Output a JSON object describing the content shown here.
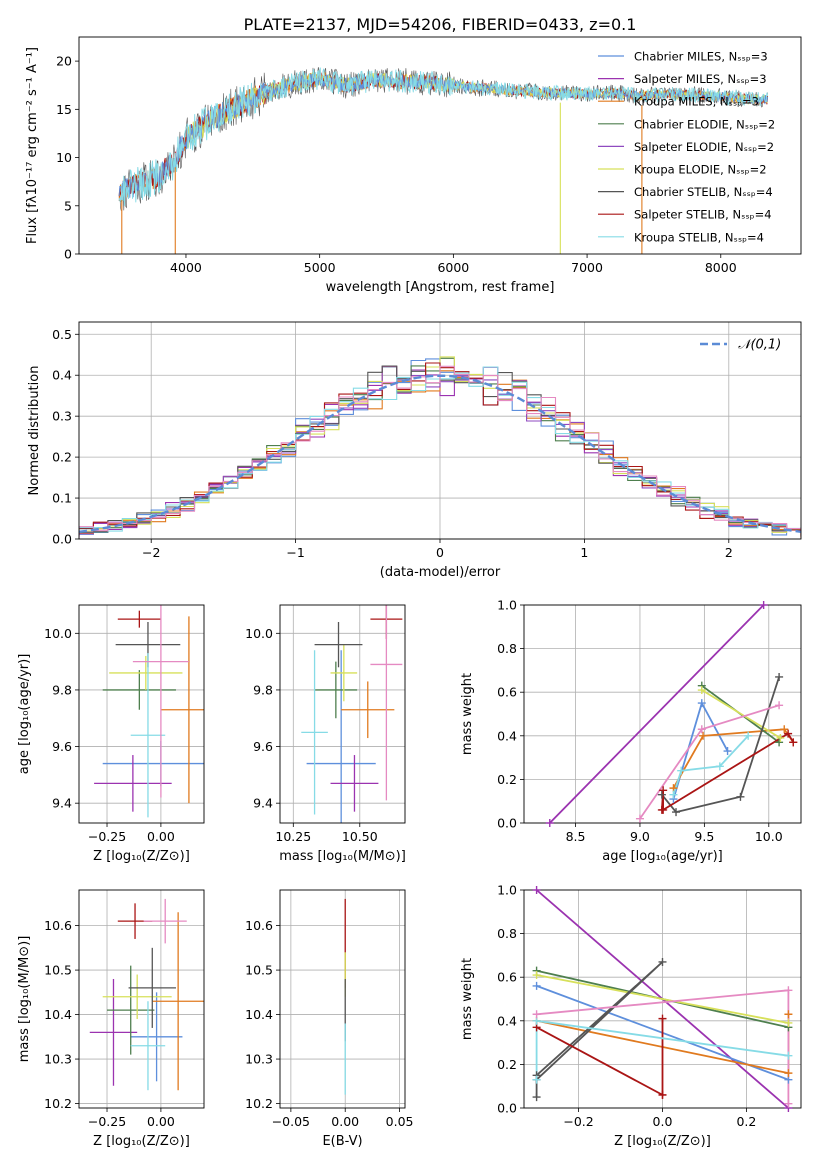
{
  "page": {
    "title": "PLATE=2137, MJD=54206, FIBERID=0433, z=0.1"
  },
  "colors": {
    "chabrier_miles": "#5e8fdc",
    "salpeter_miles": "#9b33b0",
    "kroupa_miles": "#e07a1f",
    "chabrier_elodie": "#4e7f4e",
    "salpeter_elodie": "#8f4ac0",
    "kroupa_elodie": "#d7e05a",
    "chabrier_stelib": "#555555",
    "salpeter_stelib": "#aa1515",
    "kroupa_stelib": "#86dbe6",
    "extra_pink": "#e58ac2",
    "gauss": "#5b8bd6"
  },
  "chart_data": [
    {
      "id": "spectrum",
      "type": "line",
      "xlabel": "wavelength [Angstrom, rest frame]",
      "ylabel": "Flux [fλ10⁻¹⁷ erg cm⁻² s⁻¹ A⁻¹]",
      "xlim": [
        3200,
        8600
      ],
      "ylim": [
        0,
        22.5
      ],
      "xticks": [
        4000,
        5000,
        6000,
        7000,
        8000
      ],
      "yticks": [
        0,
        5,
        10,
        15,
        20
      ],
      "legend_position": "top-right",
      "legend": [
        "Chabrier MILES, Nₛₛₚ=3",
        "Salpeter MILES, Nₛₛₚ=3",
        "Kroupa MILES, Nₛₛₚ=3",
        "Chabrier ELODIE, Nₛₛₚ=2",
        "Salpeter ELODIE, Nₛₛₚ=2",
        "Kroupa ELODIE, Nₛₛₚ=2",
        "Chabrier STELIB, Nₛₛₚ=4",
        "Salpeter STELIB, Nₛₛₚ=4",
        "Kroupa STELIB, Nₛₛₚ=4"
      ],
      "continuum": {
        "x": [
          3500,
          3600,
          3700,
          3800,
          3900,
          4000,
          4200,
          4400,
          4600,
          4800,
          5000,
          5200,
          5400,
          5600,
          5800,
          6000,
          6200,
          6400,
          6600,
          6800,
          7000,
          7200,
          7400,
          7600,
          7800,
          8000,
          8200,
          8350
        ],
        "y": [
          6.5,
          7.0,
          7.5,
          8.2,
          9.5,
          12.0,
          14.0,
          15.5,
          16.8,
          17.6,
          18.2,
          17.5,
          18.0,
          17.9,
          17.8,
          17.5,
          17.2,
          17.0,
          16.8,
          16.7,
          16.6,
          16.7,
          16.4,
          16.6,
          16.5,
          16.3,
          16.1,
          16.0
        ]
      },
      "dropouts": [
        {
          "x": 3520,
          "y": 0
        },
        {
          "x": 3920,
          "y": 0
        },
        {
          "x": 6800,
          "y": 0
        },
        {
          "x": 7410,
          "y": 0
        }
      ]
    },
    {
      "id": "residuals",
      "type": "histogram",
      "xlabel": "(data-model)/error",
      "ylabel": "Normed distribution",
      "xlim": [
        -2.5,
        2.5
      ],
      "ylim": [
        0,
        0.53
      ],
      "xticks": [
        -2,
        -1,
        0,
        1,
        2
      ],
      "yticks": [
        0.0,
        0.1,
        0.2,
        0.3,
        0.4,
        0.5
      ],
      "grid": true,
      "legend_position": "top-right",
      "gauss_label": "𝒩(0,1)",
      "bin_width": 0.1
    },
    {
      "id": "age-vs-z",
      "type": "errorbar",
      "xlabel": "Z [log₁₀(Z/Z⊙)]",
      "ylabel": "age  [log₁₀(age/yr)]",
      "xlim": [
        -0.38,
        0.2
      ],
      "ylim": [
        9.33,
        10.1
      ],
      "xticks": [
        -0.25,
        0.0
      ],
      "xticklabels": [
        "−0.25",
        "0.00"
      ],
      "yticks": [
        9.4,
        9.6,
        9.8,
        10.0
      ],
      "grid": true,
      "points": [
        {
          "c": "chabrier_miles",
          "x": 0.0,
          "xerr": 0.27,
          "y": 9.54,
          "yerr": 0.08
        },
        {
          "c": "salpeter_miles",
          "x": -0.13,
          "xerr": 0.18,
          "y": 9.47,
          "yerr": 0.1
        },
        {
          "c": "kroupa_miles",
          "x": 0.13,
          "xerr": 0.13,
          "y": 9.73,
          "yerr": 0.33
        },
        {
          "c": "chabrier_elodie",
          "x": -0.1,
          "xerr": 0.17,
          "y": 9.8,
          "yerr": 0.07
        },
        {
          "c": "kroupa_elodie",
          "x": -0.07,
          "xerr": 0.17,
          "y": 9.86,
          "yerr": 0.06
        },
        {
          "c": "chabrier_stelib",
          "x": -0.06,
          "xerr": 0.15,
          "y": 9.96,
          "yerr": 0.08
        },
        {
          "c": "salpeter_stelib",
          "x": -0.1,
          "xerr": 0.1,
          "y": 10.05,
          "yerr": 0.03
        },
        {
          "c": "kroupa_stelib",
          "x": -0.06,
          "xerr": 0.08,
          "y": 9.64,
          "yerr": 0.29
        },
        {
          "c": "extra_pink",
          "x": 0.0,
          "xerr": 0.13,
          "y": 9.9,
          "yerr": 0.48
        }
      ]
    },
    {
      "id": "age-vs-mass",
      "type": "errorbar",
      "xlabel": "mass [log₁₀(M/M⊙)]",
      "xlim": [
        10.2,
        10.67
      ],
      "ylim": [
        9.33,
        10.1
      ],
      "xticks": [
        10.25,
        10.5
      ],
      "yticks": [
        9.4,
        9.6,
        9.8,
        10.0
      ],
      "grid": true,
      "points": [
        {
          "c": "chabrier_miles",
          "x": 10.43,
          "xerr": 0.13,
          "y": 9.54,
          "yerr": 0.4
        },
        {
          "c": "salpeter_miles",
          "x": 10.48,
          "xerr": 0.09,
          "y": 9.47,
          "yerr": 0.1
        },
        {
          "c": "kroupa_miles",
          "x": 10.53,
          "xerr": 0.1,
          "y": 9.73,
          "yerr": 0.1
        },
        {
          "c": "chabrier_elodie",
          "x": 10.41,
          "xerr": 0.08,
          "y": 9.8,
          "yerr": 0.1
        },
        {
          "c": "kroupa_elodie",
          "x": 10.44,
          "xerr": 0.05,
          "y": 9.86,
          "yerr": 0.1
        },
        {
          "c": "chabrier_stelib",
          "x": 10.42,
          "xerr": 0.09,
          "y": 9.96,
          "yerr": 0.08
        },
        {
          "c": "salpeter_stelib",
          "x": 10.6,
          "xerr": 0.06,
          "y": 10.05,
          "yerr": 0.07
        },
        {
          "c": "kroupa_stelib",
          "x": 10.33,
          "xerr": 0.05,
          "y": 9.65,
          "yerr": 0.29
        },
        {
          "c": "extra_pink",
          "x": 10.6,
          "xerr": 0.06,
          "y": 9.89,
          "yerr": 0.48
        }
      ]
    },
    {
      "id": "weight-vs-age",
      "type": "line",
      "xlabel": "age  [log₁₀(age/yr)]",
      "ylabel": "mass weight",
      "xlim": [
        8.1,
        10.25
      ],
      "ylim": [
        0,
        1.0
      ],
      "xticks": [
        8.5,
        9.0,
        9.5,
        10.0
      ],
      "yticks": [
        0.0,
        0.2,
        0.4,
        0.6,
        0.8,
        1.0
      ],
      "grid": true,
      "series": [
        {
          "c": "salpeter_miles",
          "x": [
            8.3,
            9.96
          ],
          "y": [
            0.0,
            1.0
          ]
        },
        {
          "c": "chabrier_miles",
          "x": [
            9.26,
            9.48,
            9.68
          ],
          "y": [
            0.11,
            0.55,
            0.33
          ]
        },
        {
          "c": "kroupa_miles",
          "x": [
            9.26,
            9.49,
            10.12,
            10.19
          ],
          "y": [
            0.16,
            0.4,
            0.43,
            0.37
          ]
        },
        {
          "c": "chabrier_elodie",
          "x": [
            9.48,
            10.08
          ],
          "y": [
            0.63,
            0.37
          ]
        },
        {
          "c": "kroupa_elodie",
          "x": [
            9.48,
            10.09
          ],
          "y": [
            0.61,
            0.39
          ]
        },
        {
          "c": "chabrier_stelib",
          "x": [
            9.17,
            9.28,
            9.78,
            10.08
          ],
          "y": [
            0.13,
            0.05,
            0.12,
            0.67
          ]
        },
        {
          "c": "salpeter_stelib",
          "x": [
            9.17,
            9.18,
            9.18,
            10.15,
            10.19
          ],
          "y": [
            0.06,
            0.15,
            0.06,
            0.41,
            0.37
          ]
        },
        {
          "c": "kroupa_stelib",
          "x": [
            9.26,
            9.32,
            9.62,
            9.84
          ],
          "y": [
            0.13,
            0.24,
            0.26,
            0.4
          ]
        },
        {
          "c": "extra_pink",
          "x": [
            9.0,
            9.48,
            10.08
          ],
          "y": [
            0.02,
            0.43,
            0.54
          ]
        }
      ]
    },
    {
      "id": "mass-vs-z",
      "type": "errorbar",
      "xlabel": "Z [log₁₀(Z/Z⊙)]",
      "ylabel": "mass [log₁₀(M/M⊙)]",
      "xlim": [
        -0.38,
        0.2
      ],
      "ylim": [
        10.19,
        10.68
      ],
      "xticks": [
        -0.25,
        0.0
      ],
      "xticklabels": [
        "−0.25",
        "0.00"
      ],
      "yticks": [
        10.2,
        10.3,
        10.4,
        10.5,
        10.6
      ],
      "grid": true,
      "points": [
        {
          "c": "chabrier_miles",
          "x": -0.02,
          "xerr": 0.12,
          "y": 10.35,
          "yerr": 0.1
        },
        {
          "c": "salpeter_miles",
          "x": -0.22,
          "xerr": 0.11,
          "y": 10.36,
          "yerr": 0.12
        },
        {
          "c": "kroupa_miles",
          "x": 0.08,
          "xerr": 0.12,
          "y": 10.43,
          "yerr": 0.2
        },
        {
          "c": "chabrier_elodie",
          "x": -0.14,
          "xerr": 0.11,
          "y": 10.41,
          "yerr": 0.1
        },
        {
          "c": "kroupa_elodie",
          "x": -0.11,
          "xerr": 0.16,
          "y": 10.44,
          "yerr": 0.05
        },
        {
          "c": "chabrier_stelib",
          "x": -0.04,
          "xerr": 0.11,
          "y": 10.46,
          "yerr": 0.09
        },
        {
          "c": "salpeter_stelib",
          "x": -0.12,
          "xerr": 0.08,
          "y": 10.61,
          "yerr": 0.04
        },
        {
          "c": "kroupa_stelib",
          "x": -0.06,
          "xerr": 0.08,
          "y": 10.33,
          "yerr": 0.1
        },
        {
          "c": "extra_pink",
          "x": 0.02,
          "xerr": 0.1,
          "y": 10.61,
          "yerr": 0.05
        }
      ]
    },
    {
      "id": "mass-vs-ebv",
      "type": "errorbar",
      "xlabel": "E(B-V)",
      "xlim": [
        -0.06,
        0.055
      ],
      "ylim": [
        10.19,
        10.68
      ],
      "xticks": [
        -0.05,
        0.0,
        0.05
      ],
      "xticklabels": [
        "−0.05",
        "0.00",
        "0.05"
      ],
      "yticks": [
        10.2,
        10.3,
        10.4,
        10.5,
        10.6
      ],
      "grid": true,
      "points": [
        {
          "c": "salpeter_stelib",
          "x": 0.0,
          "xerr": 0,
          "y": 10.56,
          "yerr": 0.1
        },
        {
          "c": "kroupa_elodie",
          "x": 0.0,
          "xerr": 0,
          "y": 10.49,
          "yerr": 0.05
        },
        {
          "c": "chabrier_stelib",
          "x": 0.0,
          "xerr": 0,
          "y": 10.41,
          "yerr": 0.07
        },
        {
          "c": "kroupa_stelib",
          "x": 0.0,
          "xerr": 0,
          "y": 10.3,
          "yerr": 0.08
        }
      ]
    },
    {
      "id": "weight-vs-z",
      "type": "line",
      "xlabel": "Z [log₁₀(Z/Z⊙)]",
      "ylabel": "mass weight",
      "xlim": [
        -0.33,
        0.33
      ],
      "ylim": [
        0,
        1.0
      ],
      "xticks": [
        -0.2,
        0.0,
        0.2
      ],
      "xticklabels": [
        "−0.2",
        "0.0",
        "0.2"
      ],
      "yticks": [
        0.0,
        0.2,
        0.4,
        0.6,
        0.8,
        1.0
      ],
      "grid": true,
      "series": [
        {
          "c": "salpeter_miles",
          "x": [
            -0.3,
            0.3
          ],
          "y": [
            1.0,
            0.0
          ]
        },
        {
          "c": "chabrier_miles",
          "x": [
            -0.3,
            0.3
          ],
          "y": [
            0.56,
            0.13
          ]
        },
        {
          "c": "kroupa_miles",
          "x": [
            -0.3,
            0.3,
            0.3
          ],
          "y": [
            0.4,
            0.16,
            0.43
          ]
        },
        {
          "c": "chabrier_elodie",
          "x": [
            -0.3,
            0.3
          ],
          "y": [
            0.63,
            0.37
          ]
        },
        {
          "c": "kroupa_elodie",
          "x": [
            -0.3,
            0.3
          ],
          "y": [
            0.61,
            0.39
          ]
        },
        {
          "c": "chabrier_stelib",
          "x": [
            -0.3,
            -0.3,
            0.0,
            -0.3
          ],
          "y": [
            0.05,
            0.13,
            0.67,
            0.15
          ]
        },
        {
          "c": "salpeter_stelib",
          "x": [
            -0.3,
            0.0,
            0.0,
            0.0
          ],
          "y": [
            0.37,
            0.06,
            0.41,
            0.06
          ]
        },
        {
          "c": "kroupa_stelib",
          "x": [
            -0.3,
            -0.3,
            0.3
          ],
          "y": [
            0.13,
            0.4,
            0.24
          ]
        },
        {
          "c": "extra_pink",
          "x": [
            -0.3,
            0.3,
            0.3
          ],
          "y": [
            0.43,
            0.54,
            0.02
          ]
        }
      ]
    }
  ]
}
